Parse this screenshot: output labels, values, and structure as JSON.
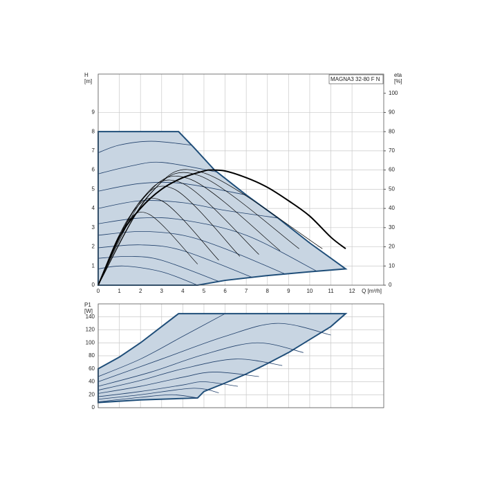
{
  "chart_data": [
    {
      "type": "line",
      "title": "MAGNA3 32-80 F N",
      "ylabel": [
        "H",
        "[m]"
      ],
      "y2label": [
        "eta",
        "[%]"
      ],
      "xlabel": "Q [m³/h]",
      "xlim": [
        0,
        13.5
      ],
      "xticks": [
        0,
        1,
        2,
        3,
        4,
        5,
        6,
        7,
        8,
        9,
        10,
        11,
        12
      ],
      "ylim": [
        0,
        11
      ],
      "yticks": [
        0,
        1,
        2,
        3,
        4,
        5,
        6,
        7,
        8,
        9
      ],
      "y2lim": [
        0,
        110
      ],
      "y2ticks": [
        0,
        10,
        20,
        30,
        40,
        50,
        60,
        70,
        80,
        90,
        100
      ],
      "grid": true,
      "series": [
        {
          "style": "area",
          "color": "#1f4e79",
          "fill": "#c8d5e2",
          "width": 2,
          "x": [
            0,
            3.8,
            4.5,
            5.5,
            7,
            8.5,
            10,
            11.7,
            10,
            8,
            6,
            4.7,
            0
          ],
          "values": [
            8,
            8,
            7.2,
            6,
            4.7,
            3.5,
            2.2,
            0.85,
            0.7,
            0.5,
            0.25,
            0,
            0
          ]
        },
        {
          "color": "#1f3f6a",
          "width": 0.8,
          "x": [
            0,
            1,
            2.5,
            4.4
          ],
          "values": [
            6.9,
            7.3,
            7.5,
            7.3
          ]
        },
        {
          "color": "#1f3f6a",
          "width": 0.8,
          "x": [
            0,
            1.5,
            3,
            5.6
          ],
          "values": [
            5.8,
            6.2,
            6.4,
            5.9
          ]
        },
        {
          "color": "#1f3f6a",
          "width": 0.8,
          "x": [
            0,
            2,
            4,
            7
          ],
          "values": [
            4.9,
            5.3,
            5.3,
            4.7
          ]
        },
        {
          "color": "#1f3f6a",
          "width": 0.8,
          "x": [
            0,
            2,
            4,
            6,
            8.5
          ],
          "values": [
            4.0,
            4.4,
            4.3,
            3.9,
            3.5
          ]
        },
        {
          "color": "#1f3f6a",
          "width": 0.8,
          "x": [
            0,
            2,
            4,
            7,
            10.3
          ],
          "values": [
            3.2,
            3.5,
            3.4,
            2.6,
            0.75
          ]
        },
        {
          "color": "#1f3f6a",
          "width": 0.8,
          "x": [
            0,
            2,
            4,
            6,
            8.8
          ],
          "values": [
            2.6,
            2.8,
            2.6,
            1.9,
            0.6
          ]
        },
        {
          "color": "#1f3f6a",
          "width": 0.8,
          "x": [
            0,
            2,
            4,
            7.3
          ],
          "values": [
            1.95,
            2.1,
            1.8,
            0.4
          ]
        },
        {
          "color": "#1f3f6a",
          "width": 0.8,
          "x": [
            0,
            1.5,
            3,
            5.7
          ],
          "values": [
            1.4,
            1.5,
            1.3,
            0.2
          ]
        },
        {
          "color": "#1f3f6a",
          "width": 0.8,
          "x": [
            0,
            1.2,
            3,
            4.7
          ],
          "values": [
            0.85,
            1.0,
            0.7,
            0
          ]
        },
        {
          "color": "#000000",
          "width": 0.7,
          "axis": "y2",
          "x": [
            0,
            1.2,
            2.4,
            4.7
          ],
          "values": [
            0,
            30,
            37,
            11
          ]
        },
        {
          "color": "#000000",
          "width": 0.7,
          "axis": "y2",
          "x": [
            0,
            1.5,
            3,
            5.7
          ],
          "values": [
            0,
            36,
            44,
            13
          ]
        },
        {
          "color": "#000000",
          "width": 0.7,
          "axis": "y2",
          "x": [
            0,
            1.8,
            3.6,
            6.7
          ],
          "values": [
            0,
            41,
            50,
            15
          ]
        },
        {
          "color": "#000000",
          "width": 0.7,
          "axis": "y2",
          "x": [
            0,
            2,
            4,
            7.6
          ],
          "values": [
            0,
            44,
            53,
            16
          ]
        },
        {
          "color": "#000000",
          "width": 0.7,
          "axis": "y2",
          "x": [
            0,
            2.2,
            4.4,
            8.6
          ],
          "values": [
            0,
            46,
            55,
            18
          ]
        },
        {
          "color": "#000000",
          "width": 0.7,
          "axis": "y2",
          "x": [
            0,
            2.4,
            4.8,
            9.5
          ],
          "values": [
            0,
            47,
            57,
            19
          ]
        },
        {
          "color": "#000000",
          "width": 0.7,
          "axis": "y2",
          "x": [
            0,
            2.5,
            5,
            10.6
          ],
          "values": [
            0,
            48,
            58.5,
            19
          ]
        },
        {
          "color": "#000000",
          "width": 2,
          "axis": "y2",
          "x": [
            0,
            1,
            2,
            3,
            4,
            5,
            5.3,
            6,
            7,
            8,
            9,
            10,
            11,
            11.7
          ],
          "values": [
            0,
            25,
            40,
            50,
            56,
            59.5,
            60,
            59.5,
            56,
            51,
            44,
            36,
            25,
            19
          ]
        }
      ]
    },
    {
      "type": "line",
      "ylabel": [
        "P1",
        "[W]"
      ],
      "xlim": [
        0,
        13.5
      ],
      "ylim": [
        0,
        160
      ],
      "yticks": [
        0,
        20,
        40,
        60,
        80,
        100,
        120,
        140
      ],
      "grid": true,
      "series": [
        {
          "style": "area",
          "color": "#1f4e79",
          "fill": "#c8d5e2",
          "width": 2,
          "x": [
            0,
            1,
            2,
            3,
            3.8,
            11.7,
            11,
            10,
            9,
            8,
            7,
            6,
            5,
            4.7,
            2,
            0
          ],
          "values": [
            60,
            78,
            100,
            125,
            145,
            145,
            125,
            105,
            85,
            68,
            52,
            38,
            25,
            15,
            12,
            8
          ]
        },
        {
          "color": "#1f3f6a",
          "width": 0.8,
          "x": [
            0,
            2,
            4,
            6
          ],
          "values": [
            48,
            75,
            110,
            145
          ]
        },
        {
          "color": "#1f3f6a",
          "width": 0.8,
          "x": [
            0,
            3,
            6,
            8.5,
            11
          ],
          "values": [
            40,
            75,
            110,
            130,
            112
          ]
        },
        {
          "color": "#1f3f6a",
          "width": 0.8,
          "x": [
            0,
            2.5,
            5,
            7.5,
            9.7
          ],
          "values": [
            33,
            55,
            82,
            100,
            85
          ]
        },
        {
          "color": "#1f3f6a",
          "width": 0.8,
          "x": [
            0,
            2,
            4,
            6.5,
            8.7
          ],
          "values": [
            27,
            42,
            60,
            75,
            65
          ]
        },
        {
          "color": "#1f3f6a",
          "width": 0.8,
          "x": [
            0,
            2,
            4,
            5.5,
            7.6
          ],
          "values": [
            22,
            33,
            47,
            55,
            48
          ]
        },
        {
          "color": "#1f3f6a",
          "width": 0.8,
          "x": [
            0,
            2,
            4,
            5,
            6.6
          ],
          "values": [
            17,
            25,
            35,
            40,
            33
          ]
        },
        {
          "color": "#1f3f6a",
          "width": 0.8,
          "x": [
            0,
            2,
            4.5,
            5.7
          ],
          "values": [
            13,
            20,
            30,
            23
          ]
        },
        {
          "color": "#1f3f6a",
          "width": 0.8,
          "x": [
            0,
            2,
            3.5,
            4.7
          ],
          "values": [
            9,
            16,
            20,
            15
          ]
        }
      ]
    }
  ]
}
